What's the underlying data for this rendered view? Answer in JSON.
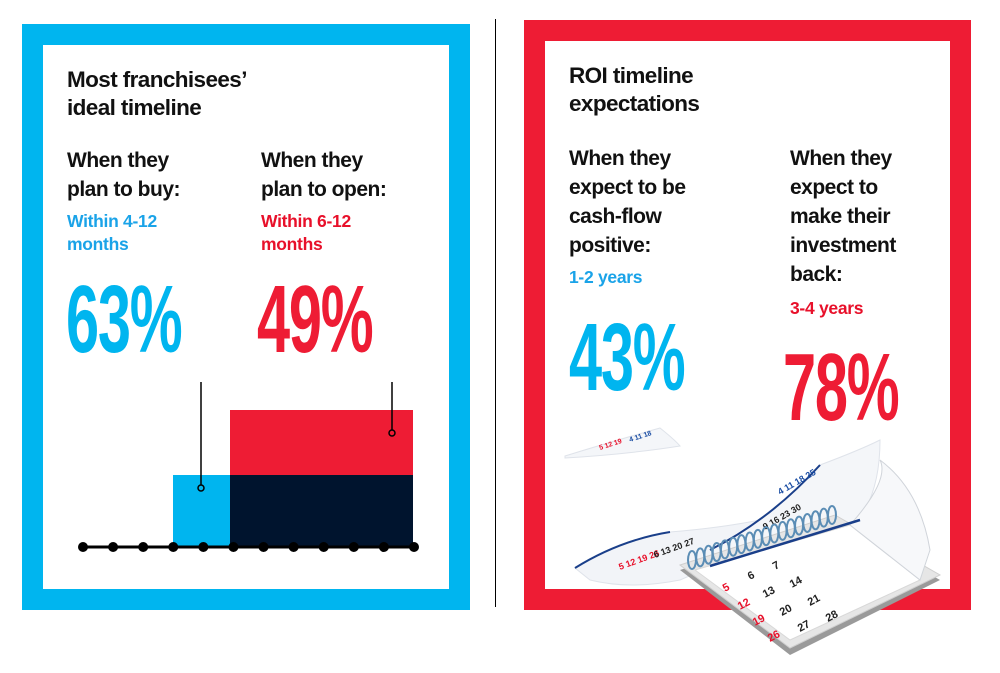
{
  "colors": {
    "blue": "#00b5ef",
    "red": "#ee1c34",
    "navy": "#00142e",
    "text": "#111111"
  },
  "left": {
    "title_line1": "Most franchisees’",
    "title_line2": "ideal timeline",
    "buy": {
      "question_line1": "When they",
      "question_line2": "plan to buy:",
      "answer_line1": "Within 4-12",
      "answer_line2": "months",
      "value": "63%"
    },
    "open": {
      "question_line1": "When they",
      "question_line2": "plan to open:",
      "answer_line1": "Within 6-12",
      "answer_line2": "months",
      "value": "49%"
    }
  },
  "right": {
    "title_line1": "ROI timeline",
    "title_line2": "expectations",
    "cashflow": {
      "question_line1": "When they",
      "question_line2": "expect to be",
      "question_line3": "cash-flow",
      "question_line4": "positive:",
      "answer": "1-2 years",
      "value": "43%"
    },
    "investment": {
      "question_line1": "When they",
      "question_line2": "expect to",
      "question_line3": "make their",
      "question_line4": "investment",
      "question_line5": "back:",
      "answer": "3-4 years",
      "value": "78%"
    }
  },
  "timeline": {
    "ticks": 12,
    "buy_window_months": [
      4,
      12
    ],
    "open_window_months": [
      6,
      12
    ]
  },
  "calendar": {
    "icon": "calendar-icon",
    "visible_dates_red": [
      "5",
      "12",
      "19",
      "26"
    ],
    "visible_dates_black": [
      "6",
      "7",
      "13",
      "14",
      "20",
      "21",
      "27",
      "28"
    ]
  }
}
